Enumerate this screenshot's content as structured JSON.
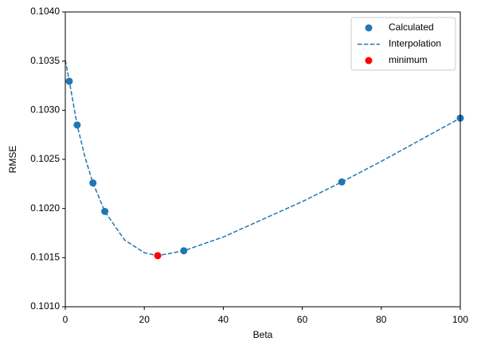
{
  "chart_data": {
    "type": "scatter",
    "xlabel": "Beta",
    "ylabel": "RMSE",
    "xlim": [
      0,
      100
    ],
    "xticks": [
      0,
      20,
      40,
      60,
      80,
      100
    ],
    "ylim": [
      0.101,
      0.104
    ],
    "yticks": [
      {
        "value": 0.101,
        "label": "0.1010"
      },
      {
        "value": 0.1015,
        "label": "0.1015"
      },
      {
        "value": 0.102,
        "label": "0.1020"
      },
      {
        "value": 0.1025,
        "label": "0.1025"
      },
      {
        "value": 0.103,
        "label": "0.1030"
      },
      {
        "value": 0.1035,
        "label": "0.1035"
      },
      {
        "value": 0.104,
        "label": "0.1040"
      }
    ],
    "legend": "upper right",
    "series": [
      {
        "name": "Calculated",
        "kind": "scatter",
        "color": "#1f77b4",
        "x": [
          1,
          3,
          7,
          10,
          30,
          70,
          100
        ],
        "values": [
          0.103295,
          0.10285,
          0.10226,
          0.10197,
          0.10157,
          0.10227,
          0.10292
        ]
      },
      {
        "name": "Interpolation",
        "kind": "line",
        "style": "dashed",
        "color": "#1f77b4",
        "x": [
          0,
          1,
          3,
          5,
          7,
          10,
          15,
          20,
          23.4,
          30,
          40,
          50,
          60,
          70,
          80,
          90,
          100
        ],
        "values": [
          0.10351,
          0.1033,
          0.10285,
          0.10252,
          0.10226,
          0.10197,
          0.10168,
          0.10155,
          0.10152,
          0.10157,
          0.10171,
          0.10189,
          0.10207,
          0.10227,
          0.10248,
          0.1027,
          0.10292
        ]
      },
      {
        "name": "minimum",
        "kind": "scatter",
        "color": "#ff0000",
        "x": [
          23.4
        ],
        "values": [
          0.10152
        ]
      }
    ]
  }
}
